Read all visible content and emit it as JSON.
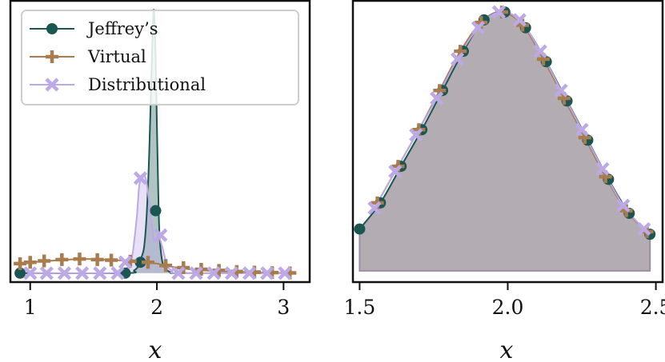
{
  "chart_data": [
    {
      "type": "line",
      "xlabel": "x",
      "ylabel": "",
      "title": "",
      "xlim": [
        0.85,
        3.2
      ],
      "ylim": [
        -0.03,
        1.0
      ],
      "xticks": [
        1,
        2,
        3
      ],
      "xtick_labels": [
        "1",
        "2",
        "3"
      ],
      "grid": false,
      "legend": {
        "location": "upper-left",
        "entries": [
          "Jeffrey’s",
          "Virtual",
          "Distributional"
        ]
      },
      "series": [
        {
          "name": "Jeffrey’s",
          "color": "#1b5652",
          "marker": "circle",
          "fill": true,
          "curve": {
            "x": [
              0.92,
              1.75,
              1.82,
              1.86,
              1.88,
              1.9,
              1.92,
              1.94,
              1.96,
              1.975,
              1.99,
              2.0,
              2.01,
              2.02,
              2.04,
              2.07,
              2.12,
              2.2,
              3.1
            ],
            "y": [
              0.0,
              0.0,
              0.01,
              0.03,
              0.06,
              0.1,
              0.22,
              0.45,
              0.78,
              0.97,
              0.8,
              0.55,
              0.32,
              0.15,
              0.05,
              0.015,
              0.003,
              0.0,
              0.0
            ]
          },
          "points": {
            "x": [
              0.92,
              1.75,
              1.87,
              1.99
            ],
            "y": [
              0.0,
              0.0,
              0.04,
              0.23
            ]
          }
        },
        {
          "name": "Virtual",
          "color": "#a87c4f",
          "marker": "plus",
          "fill": false,
          "curve": {
            "x": [
              0.92,
              1.0,
              1.15,
              1.3,
              1.45,
              1.6,
              1.75,
              1.9,
              2.0,
              2.1,
              2.2,
              2.3,
              2.5,
              2.7,
              2.9,
              3.05
            ],
            "y": [
              0.035,
              0.04,
              0.045,
              0.05,
              0.052,
              0.05,
              0.046,
              0.04,
              0.035,
              0.025,
              0.018,
              0.012,
              0.007,
              0.004,
              0.002,
              0.001
            ]
          },
          "points": {
            "x": [
              0.92,
              1.0,
              1.11,
              1.25,
              1.39,
              1.53,
              1.64,
              1.79,
              1.93,
              2.07,
              2.21,
              2.35,
              2.49,
              2.63,
              2.77,
              2.91,
              3.05
            ],
            "y": [
              0.035,
              0.04,
              0.045,
              0.05,
              0.052,
              0.05,
              0.048,
              0.044,
              0.04,
              0.028,
              0.02,
              0.014,
              0.01,
              0.006,
              0.004,
              0.002,
              0.001
            ]
          }
        },
        {
          "name": "Distributional",
          "color": "#bca9e5",
          "marker": "x",
          "fill": true,
          "curve": {
            "x": [
              1.0,
              1.6,
              1.7,
              1.75,
              1.8,
              1.84,
              1.86,
              1.88,
              1.9,
              1.92,
              1.95,
              1.98,
              2.01,
              2.04,
              2.08,
              2.12,
              2.2,
              3.05
            ],
            "y": [
              0.0,
              0.0,
              0.005,
              0.015,
              0.05,
              0.2,
              0.32,
              0.35,
              0.36,
              0.33,
              0.22,
              0.12,
              0.14,
              0.1,
              0.03,
              0.01,
              0.0,
              0.0
            ]
          },
          "points": {
            "x": [
              1.0,
              1.13,
              1.27,
              1.41,
              1.55,
              1.69,
              1.75,
              1.87,
              2.03,
              2.17,
              2.31,
              2.45,
              2.59,
              2.73,
              2.87,
              3.01
            ],
            "y": [
              0.0,
              0.0,
              0.0,
              0.0,
              0.0,
              0.0,
              0.04,
              0.35,
              0.14,
              0.0,
              0.0,
              0.0,
              0.0,
              0.0,
              0.0,
              0.0
            ]
          }
        }
      ]
    },
    {
      "type": "area",
      "xlabel": "x",
      "ylabel": "",
      "title": "",
      "xlim": [
        1.48,
        2.52
      ],
      "ylim": [
        -0.04,
        1.03
      ],
      "xticks": [
        1.5,
        2.0,
        2.5
      ],
      "xtick_labels": [
        "1.5",
        "2.0",
        "2.5"
      ],
      "grid": false,
      "fill_color": "#b4acb3",
      "series": [
        {
          "name": "Jeffrey’s",
          "color": "#1b5652",
          "marker": "circle",
          "x": [
            1.5,
            1.57,
            1.64,
            1.71,
            1.78,
            1.85,
            1.92,
            1.99,
            2.06,
            2.13,
            2.2,
            2.27,
            2.34,
            2.41,
            2.48
          ],
          "y": [
            0.16,
            0.26,
            0.4,
            0.54,
            0.69,
            0.84,
            0.96,
            0.99,
            0.93,
            0.8,
            0.65,
            0.5,
            0.35,
            0.22,
            0.14
          ]
        },
        {
          "name": "Virtual",
          "color": "#a87c4f",
          "marker": "plus",
          "x": [
            1.56,
            1.63,
            1.7,
            1.77,
            1.84,
            1.91,
            1.98,
            2.05,
            2.12,
            2.19,
            2.26,
            2.33,
            2.4,
            2.47
          ],
          "y": [
            0.26,
            0.4,
            0.54,
            0.69,
            0.84,
            0.95,
            0.99,
            0.94,
            0.81,
            0.66,
            0.51,
            0.36,
            0.23,
            0.15
          ]
        },
        {
          "name": "Distributional",
          "color": "#bca9e5",
          "marker": "x",
          "x": [
            1.55,
            1.62,
            1.69,
            1.76,
            1.83,
            1.9,
            1.97,
            2.04,
            2.11,
            2.18,
            2.25,
            2.32,
            2.39,
            2.46
          ],
          "y": [
            0.24,
            0.38,
            0.52,
            0.66,
            0.81,
            0.93,
            0.99,
            0.96,
            0.84,
            0.69,
            0.54,
            0.39,
            0.25,
            0.16
          ]
        }
      ]
    }
  ]
}
